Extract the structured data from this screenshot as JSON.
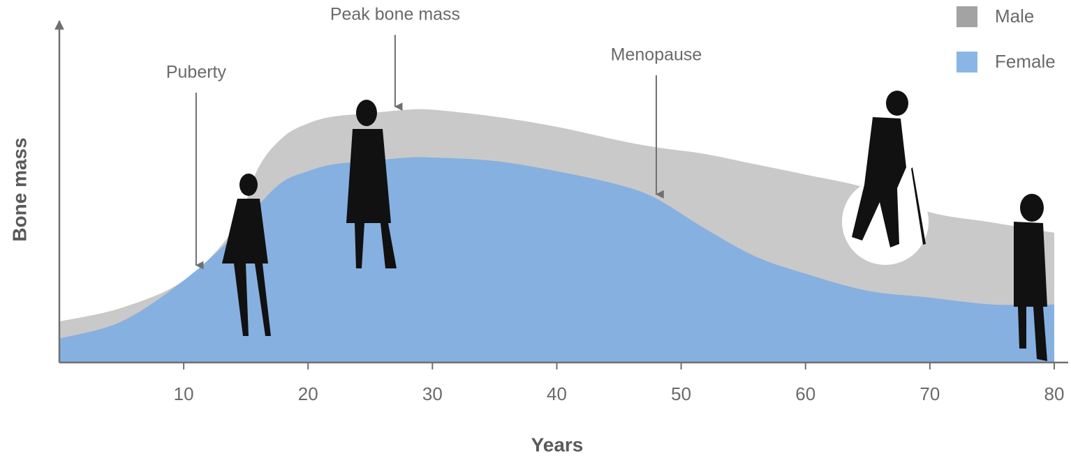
{
  "chart_data": {
    "type": "area",
    "x_label": "Years",
    "y_label": "Bone mass",
    "x": [
      0,
      5,
      10,
      14,
      16,
      18,
      20,
      22,
      25,
      28,
      30,
      35,
      40,
      45,
      48,
      52,
      56,
      60,
      65,
      70,
      75,
      80
    ],
    "series": [
      {
        "name": "Male",
        "color": "#c9c9c9",
        "legend_color": "#a3a3a3",
        "values": [
          12,
          16,
          24,
          39,
          57,
          66,
          70,
          72,
          73,
          74,
          74,
          72,
          69,
          65,
          63,
          61,
          58,
          55,
          51,
          44,
          41,
          38
        ]
      },
      {
        "name": "Female",
        "color": "#86b0e0",
        "legend_color": "#8ab6e6",
        "values": [
          7,
          12,
          24,
          37,
          46,
          53,
          56,
          58,
          59,
          60,
          60,
          59,
          56,
          52,
          48,
          39,
          31,
          26,
          21,
          19,
          17,
          17
        ]
      }
    ],
    "annotations": [
      {
        "text": "Puberty",
        "x": 11,
        "points_to": "Female"
      },
      {
        "text": "Peak bone mass",
        "x": 27,
        "points_to": "Male"
      },
      {
        "text": "Menopause",
        "x": 48,
        "points_to": "Female"
      }
    ],
    "xlim": [
      0,
      80
    ],
    "xticks": [
      10,
      20,
      30,
      40,
      50,
      60,
      70,
      80
    ],
    "ylim": [
      0,
      100
    ],
    "legend": "top-right"
  }
}
